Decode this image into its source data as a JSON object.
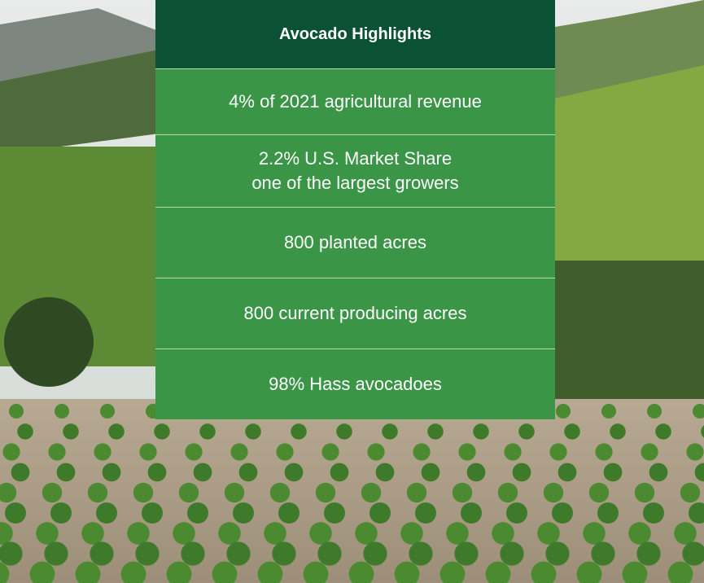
{
  "header": {
    "title": "Avocado Highlights"
  },
  "rows": [
    [
      "4% of 2021 agricultural revenue"
    ],
    [
      "2.2% U.S. Market Share",
      "one of the largest growers"
    ],
    [
      "800 planted acres"
    ],
    [
      "800 current producing acres"
    ],
    [
      "98% Hass avocadoes"
    ]
  ]
}
